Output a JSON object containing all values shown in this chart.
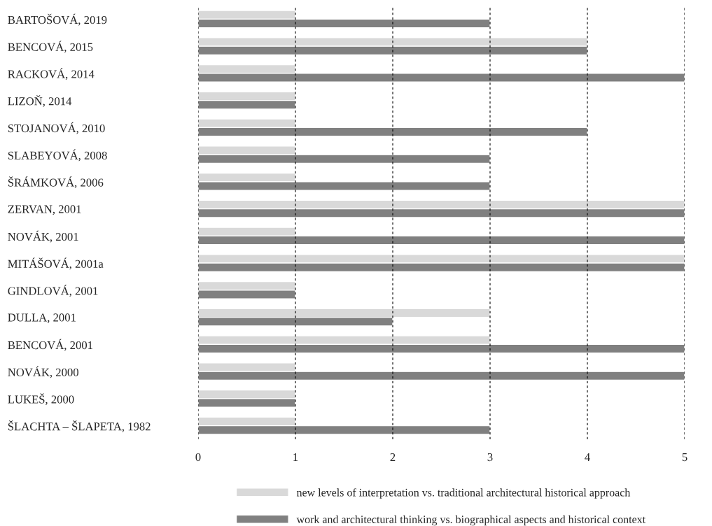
{
  "chart_data": {
    "type": "bar",
    "orientation": "horizontal",
    "categories": [
      "BARTOŠOVÁ, 2019",
      "BENCOVÁ, 2015",
      "RACKOVÁ, 2014",
      "LIZOŇ, 2014",
      "STOJANOVÁ, 2010",
      "SLABEYOVÁ, 2008",
      "ŠRÁMKOVÁ, 2006",
      "ZERVAN, 2001",
      "NOVÁK, 2001",
      "MITÁŠOVÁ, 2001a",
      "GINDLOVÁ, 2001",
      "DULLA, 2001",
      "BENCOVÁ, 2001",
      "NOVÁK, 2000",
      "LUKEŠ, 2000",
      "ŠLACHTA – ŠLAPETA, 1982"
    ],
    "series": [
      {
        "name": "new levels of interpretation vs. traditional architectural historical approach",
        "color": "#d9d9d9",
        "values": [
          1,
          4,
          1,
          1,
          1,
          1,
          1,
          5,
          1,
          5,
          1,
          3,
          3,
          1,
          1,
          1
        ]
      },
      {
        "name": "work and architectural thinking vs. biographical aspects and historical context",
        "color": "#808080",
        "values": [
          3,
          4,
          5,
          1,
          4,
          3,
          3,
          5,
          5,
          5,
          1,
          2,
          5,
          5,
          1,
          3
        ]
      }
    ],
    "xlim": [
      0,
      5
    ],
    "xticks": [
      0,
      1,
      2,
      3,
      4,
      5
    ],
    "grid": "x",
    "legend": "bottom"
  }
}
